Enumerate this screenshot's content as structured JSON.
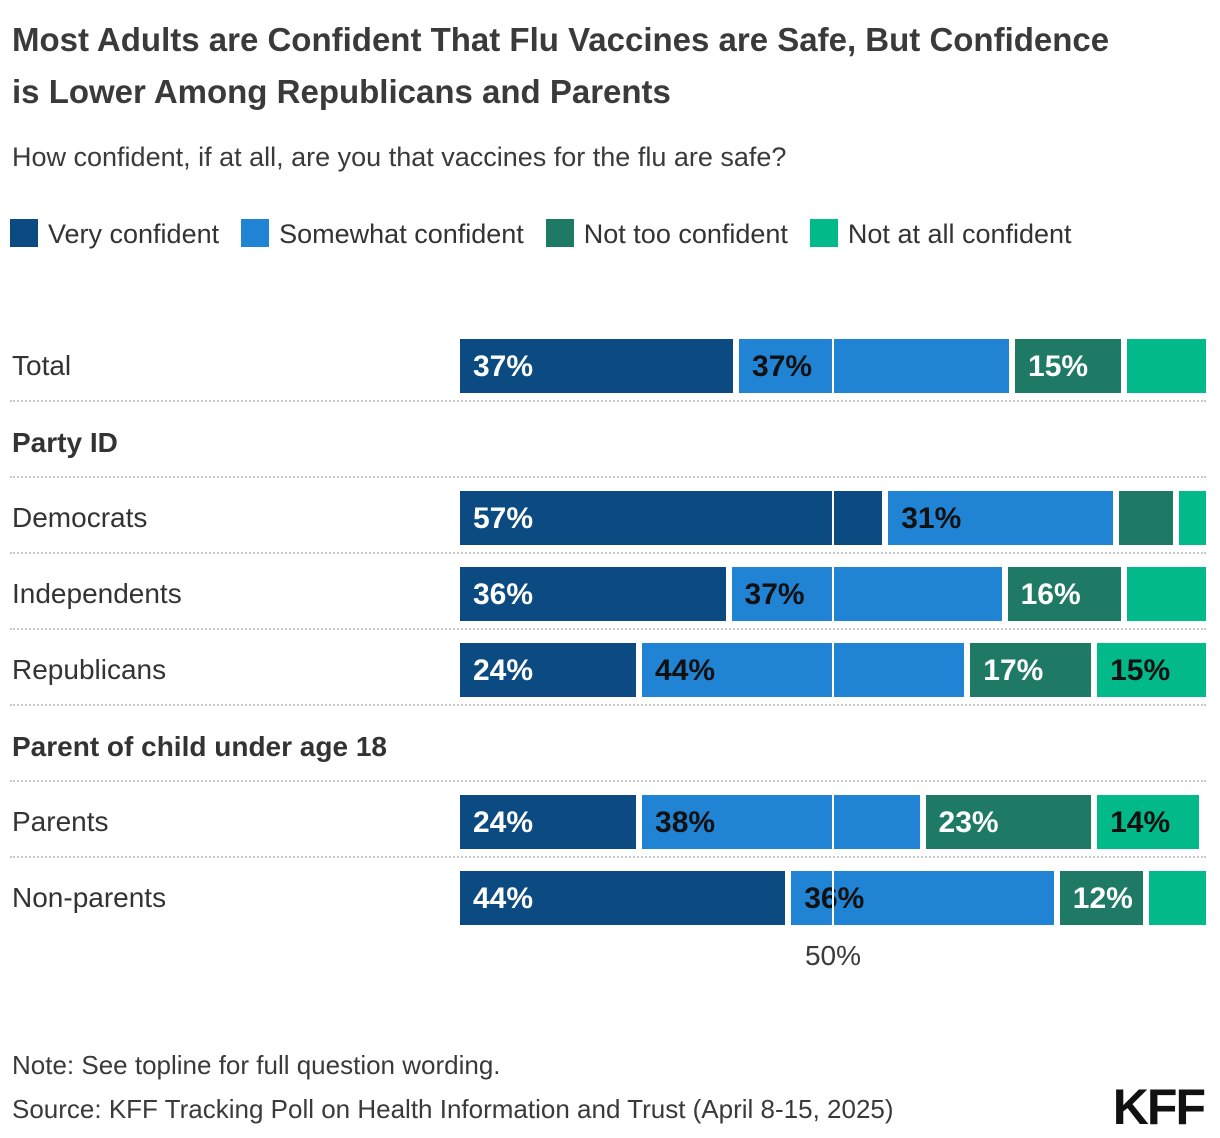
{
  "title": "Most Adults are Confident That Flu Vaccines are Safe, But Confidence is Lower Among Republicans and Parents",
  "subtitle": "How confident, if at all, are you that vaccines for the flu are safe?",
  "chart_data": {
    "type": "bar",
    "stacked": true,
    "orientation": "horizontal",
    "unit": "%",
    "xlim": [
      0,
      100
    ],
    "grid": "single white gridline at 50%",
    "legend_position": "top",
    "min_pct_for_label": 12,
    "series": [
      {
        "name": "Very confident",
        "color": "#0b4b82",
        "text_color": "#ffffff"
      },
      {
        "name": "Somewhat confident",
        "color": "#2183d4",
        "text_color": "#111111"
      },
      {
        "name": "Not too confident",
        "color": "#1e7a64",
        "text_color": "#ffffff"
      },
      {
        "name": "Not at all confident",
        "color": "#02b98a",
        "text_color": "#111111"
      }
    ],
    "rows": [
      {
        "kind": "bar",
        "label": "Total",
        "values": [
          37,
          37,
          15,
          11
        ]
      },
      {
        "kind": "section",
        "label": "Party ID"
      },
      {
        "kind": "bar",
        "label": "Democrats",
        "values": [
          57,
          31,
          8,
          4
        ]
      },
      {
        "kind": "bar",
        "label": "Independents",
        "values": [
          36,
          37,
          16,
          11
        ]
      },
      {
        "kind": "bar",
        "label": "Republicans",
        "values": [
          24,
          44,
          17,
          15
        ]
      },
      {
        "kind": "section",
        "label": "Parent of child under age 18"
      },
      {
        "kind": "bar",
        "label": "Parents",
        "values": [
          24,
          38,
          23,
          14
        ]
      },
      {
        "kind": "bar",
        "label": "Non-parents",
        "values": [
          44,
          36,
          12,
          8
        ]
      }
    ],
    "axis": {
      "tick_value": 50,
      "tick_label": "50%"
    }
  },
  "footer": {
    "note": "Note: See topline for full question wording.",
    "source": "Source: KFF Tracking Poll on Health Information and Trust (April 8-15, 2025)",
    "logo": "KFF"
  }
}
